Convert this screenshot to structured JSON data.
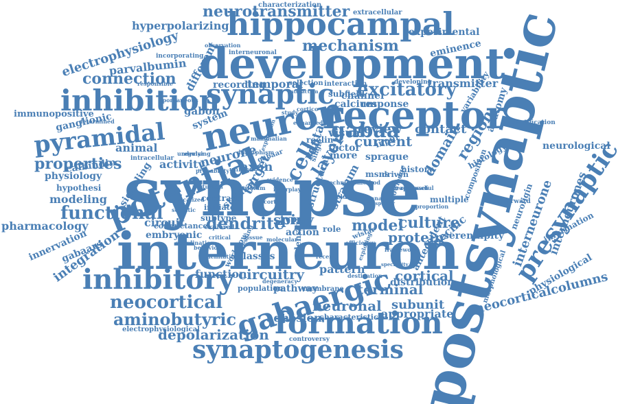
{
  "color": "#4a7fb5",
  "words": [
    "synapse",
    "postsynaptic",
    "interneuron",
    "development",
    "hippocampal",
    "neuron",
    "receptor",
    "synaptic",
    "potential",
    "inhibition",
    "pyramidal",
    "inhibitory",
    "gabaergic",
    "formation",
    "synaptogenesis",
    "presynaptic",
    "cell",
    "excitatory",
    "neurotransmitter",
    "mechanism",
    "connection",
    "properties",
    "functional",
    "dendrite",
    "neocortical",
    "aminobutyric",
    "depolarization",
    "gabaa",
    "electrophysiology",
    "hyperpolarizing",
    "parvalbumin",
    "different",
    "region",
    "current",
    "contact",
    "review",
    "layer",
    "culture",
    "model",
    "protein",
    "spiny",
    "circuitry",
    "terminal",
    "subunit",
    "appropriate",
    "neuronal",
    "cortical",
    "neocorticalcolumns",
    "interneurone",
    "interneurones",
    "physiological",
    "experimental",
    "transmitter",
    "eminence",
    "neurological",
    "pharmacology",
    "immunopositive",
    "ganglionic",
    "calbindin",
    "animal",
    "physiology",
    "hypothesi",
    "modeling",
    "signaling",
    "innervation",
    "integration",
    "gabaars",
    "embryonic",
    "circuit",
    "neurone",
    "axon",
    "activity",
    "gabon",
    "system",
    "temporal",
    "recording",
    "calcium",
    "response",
    "channel",
    "subfield",
    "interaction",
    "selection",
    "visual",
    "sprague",
    "rat",
    "data",
    "reelin",
    "input",
    "history",
    "domain",
    "msns",
    "driven",
    "factor",
    "more",
    "single",
    "multiple",
    "specific",
    "serendipity",
    "antecedent",
    "neuroligin",
    "histology",
    "anatomy",
    "variability",
    "quantification",
    "information",
    "morphological",
    "composition",
    "feedforward",
    "function",
    "pattern",
    "distribution",
    "density",
    "classes",
    "action",
    "type",
    "target",
    "striatal",
    "initiate",
    "subtype",
    "stratum",
    "structural",
    "knowledge",
    "wistar",
    "proportion",
    "developing",
    "conductance",
    "contrast",
    "explored",
    "behavior",
    "pathway",
    "population",
    "workflow",
    "membrane",
    "characteristic",
    "adhesion",
    "controversy",
    "electrophysiological",
    "extracellular",
    "characterization",
    "observation",
    "interneuronal",
    "incorporating",
    "responsible",
    "spontaneous",
    "determined",
    "intracellular",
    "role",
    "cluster",
    "degeneracy",
    "destination",
    "exploring",
    "approach",
    "interest",
    "useful",
    "facilitating",
    "recent",
    "perturbed",
    "probability",
    "unified",
    "regular",
    "underlying",
    "gabaar",
    "dimorphism",
    "mammalian",
    "enhanced",
    "expressing",
    "critical",
    "cortex",
    "molecular",
    "technique",
    "method",
    "analysis",
    "efficiency",
    "localized",
    "coordination",
    "transporter",
    "specificity",
    "interaction",
    "evidence",
    "interplay",
    "expression",
    "framework",
    "study",
    "cortico",
    "striatum",
    "somatic",
    "tissue"
  ]
}
